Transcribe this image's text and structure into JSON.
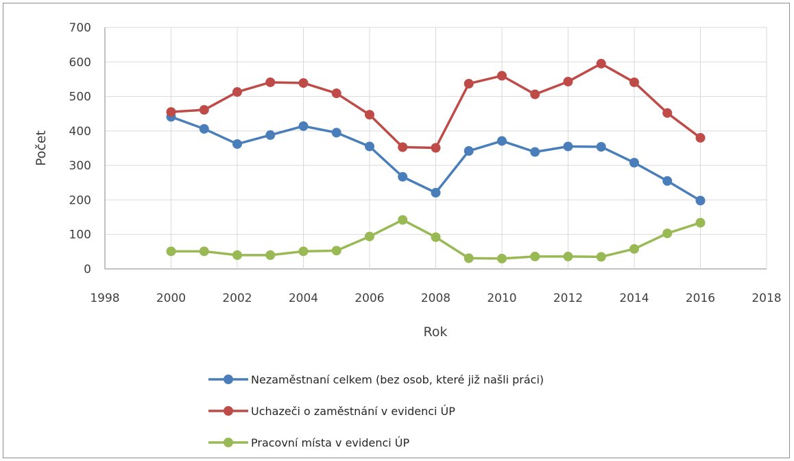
{
  "chart_data": {
    "type": "line",
    "xlabel": "Rok",
    "ylabel": "Počet",
    "xlim": [
      1998,
      2018
    ],
    "ylim": [
      0,
      700
    ],
    "xticks": [
      1998,
      2000,
      2002,
      2004,
      2006,
      2008,
      2010,
      2012,
      2014,
      2016,
      2018
    ],
    "yticks": [
      0,
      100,
      200,
      300,
      400,
      500,
      600,
      700
    ],
    "grid": true,
    "legend_position": "bottom",
    "x": [
      2000,
      2001,
      2002,
      2003,
      2004,
      2005,
      2006,
      2007,
      2008,
      2009,
      2010,
      2011,
      2012,
      2013,
      2014,
      2015,
      2016
    ],
    "series": [
      {
        "name": "Nezaměstnaní celkem (bez osob, které již našli práci)",
        "color": "#4a7ebb",
        "values": [
          441,
          406,
          362,
          388,
          414,
          395,
          355,
          267,
          221,
          342,
          371,
          339,
          355,
          354,
          308,
          255,
          198
        ]
      },
      {
        "name": "Uchazeči o zaměstnání v evidenci ÚP",
        "color": "#be4b48",
        "values": [
          455,
          461,
          513,
          541,
          539,
          509,
          447,
          353,
          351,
          537,
          560,
          506,
          543,
          595,
          541,
          452,
          380
        ]
      },
      {
        "name": "Pracovní místa v evidenci ÚP",
        "color": "#98b954",
        "values": [
          51,
          51,
          40,
          40,
          51,
          53,
          94,
          142,
          92,
          31,
          30,
          36,
          36,
          35,
          58,
          103,
          134
        ]
      }
    ]
  }
}
